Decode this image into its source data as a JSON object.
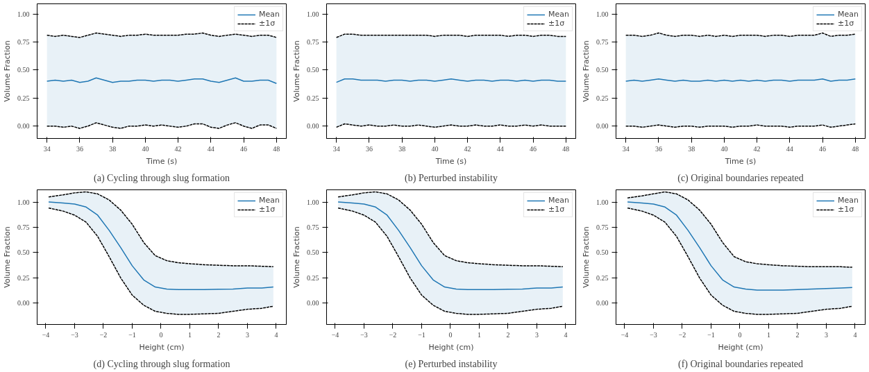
{
  "chart_data": [
    {
      "type": "line",
      "title": "(a) Cycling through slug formation",
      "xlabel": "Time (s)",
      "ylabel": "Volume Fraction",
      "xlim": [
        33.4,
        48.6
      ],
      "ylim": [
        -0.11,
        1.09
      ],
      "xticks": [
        34,
        36,
        38,
        40,
        42,
        44,
        46,
        48
      ],
      "yticks": [
        {
          "value": 0,
          "label": "0.00"
        },
        {
          "value": 0.25,
          "label": "0.25"
        },
        {
          "value": 0.5,
          "label": "0.50"
        },
        {
          "value": 0.75,
          "label": "0.75"
        },
        {
          "value": 1,
          "label": "1.00"
        }
      ],
      "legend": "top right",
      "grid": false,
      "x": [
        34,
        34.5,
        35,
        35.5,
        36,
        36.5,
        37,
        37.5,
        38,
        38.5,
        39,
        39.5,
        40,
        40.5,
        41,
        41.5,
        42,
        42.5,
        43,
        43.5,
        44,
        44.5,
        45,
        45.5,
        46,
        46.5,
        47,
        47.5,
        48
      ],
      "series": [
        {
          "name": "Mean",
          "color": "#1f77b4",
          "line_style": "solid",
          "values": [
            0.4,
            0.41,
            0.4,
            0.41,
            0.39,
            0.4,
            0.43,
            0.41,
            0.39,
            0.4,
            0.4,
            0.41,
            0.41,
            0.4,
            0.41,
            0.41,
            0.4,
            0.41,
            0.42,
            0.42,
            0.4,
            0.39,
            0.41,
            0.43,
            0.4,
            0.4,
            0.41,
            0.41,
            0.38
          ],
          "upper": [
            0.81,
            0.8,
            0.81,
            0.8,
            0.79,
            0.81,
            0.83,
            0.82,
            0.81,
            0.8,
            0.81,
            0.81,
            0.82,
            0.81,
            0.81,
            0.81,
            0.81,
            0.82,
            0.82,
            0.83,
            0.81,
            0.8,
            0.81,
            0.82,
            0.81,
            0.8,
            0.81,
            0.81,
            0.79
          ],
          "lower": [
            0.0,
            0.0,
            -0.01,
            0.0,
            -0.02,
            0.0,
            0.03,
            0.01,
            -0.01,
            -0.02,
            0.0,
            0.0,
            0.01,
            0.0,
            0.01,
            0.0,
            -0.01,
            0.0,
            0.02,
            0.02,
            -0.01,
            -0.02,
            0.01,
            0.03,
            0.0,
            -0.02,
            0.01,
            0.01,
            -0.02
          ]
        },
        {
          "name": "±1σ",
          "color": "#000000",
          "line_style": "dashed",
          "values": [
            0.81,
            0.8,
            0.81,
            0.8,
            0.79,
            0.81,
            0.83,
            0.82,
            0.81,
            0.8,
            0.81,
            0.81,
            0.82,
            0.81,
            0.81,
            0.81,
            0.81,
            0.82,
            0.82,
            0.83,
            0.81,
            0.8,
            0.81,
            0.82,
            0.81,
            0.8,
            0.81,
            0.81,
            0.79
          ]
        },
        {
          "color": "#000000",
          "line_style": "dashed",
          "values": [
            0.0,
            0.0,
            -0.01,
            0.0,
            -0.02,
            0.0,
            0.03,
            0.01,
            -0.01,
            -0.02,
            0.0,
            0.0,
            0.01,
            0.0,
            0.01,
            0.0,
            -0.01,
            0.0,
            0.02,
            0.02,
            -0.01,
            -0.02,
            0.01,
            0.03,
            0.0,
            -0.02,
            0.01,
            0.01,
            -0.02
          ]
        }
      ]
    },
    {
      "type": "line",
      "title": "(b) Perturbed instability",
      "xlabel": "Time (s)",
      "ylabel": "Volume Fraction",
      "xlim": [
        33.4,
        48.6
      ],
      "ylim": [
        -0.11,
        1.09
      ],
      "xticks": [
        34,
        36,
        38,
        40,
        42,
        44,
        46,
        48
      ],
      "yticks": [
        {
          "value": 0,
          "label": "0.00"
        },
        {
          "value": 0.25,
          "label": "0.25"
        },
        {
          "value": 0.5,
          "label": "0.50"
        },
        {
          "value": 0.75,
          "label": "0.75"
        },
        {
          "value": 1,
          "label": "1.00"
        }
      ],
      "legend": "top right",
      "grid": false,
      "x": [
        34,
        34.5,
        35,
        35.5,
        36,
        36.5,
        37,
        37.5,
        38,
        38.5,
        39,
        39.5,
        40,
        40.5,
        41,
        41.5,
        42,
        42.5,
        43,
        43.5,
        44,
        44.5,
        45,
        45.5,
        46,
        46.5,
        47,
        47.5,
        48
      ],
      "series": [
        {
          "name": "Mean",
          "color": "#1f77b4",
          "line_style": "solid",
          "values": [
            0.39,
            0.42,
            0.42,
            0.41,
            0.41,
            0.41,
            0.4,
            0.41,
            0.41,
            0.4,
            0.41,
            0.41,
            0.4,
            0.41,
            0.42,
            0.41,
            0.4,
            0.41,
            0.41,
            0.4,
            0.41,
            0.41,
            0.4,
            0.41,
            0.4,
            0.41,
            0.41,
            0.4,
            0.4
          ],
          "upper": [
            0.79,
            0.82,
            0.82,
            0.81,
            0.81,
            0.81,
            0.81,
            0.81,
            0.81,
            0.81,
            0.81,
            0.81,
            0.8,
            0.81,
            0.81,
            0.81,
            0.8,
            0.81,
            0.81,
            0.81,
            0.81,
            0.8,
            0.81,
            0.81,
            0.8,
            0.81,
            0.81,
            0.8,
            0.8
          ],
          "lower": [
            -0.01,
            0.02,
            0.01,
            0.0,
            0.01,
            0.0,
            0.0,
            0.01,
            0.0,
            0.0,
            0.01,
            0.0,
            -0.01,
            0.0,
            0.01,
            0.0,
            0.0,
            0.01,
            0.0,
            0.0,
            0.01,
            0.0,
            0.0,
            0.01,
            0.0,
            0.01,
            0.0,
            0.0,
            0.0
          ]
        },
        {
          "name": "±1σ",
          "color": "#000000",
          "line_style": "dashed",
          "values": [
            0.79,
            0.82,
            0.82,
            0.81,
            0.81,
            0.81,
            0.81,
            0.81,
            0.81,
            0.81,
            0.81,
            0.81,
            0.8,
            0.81,
            0.81,
            0.81,
            0.8,
            0.81,
            0.81,
            0.81,
            0.81,
            0.8,
            0.81,
            0.81,
            0.8,
            0.81,
            0.81,
            0.8,
            0.8
          ]
        },
        {
          "color": "#000000",
          "line_style": "dashed",
          "values": [
            -0.01,
            0.02,
            0.01,
            0.0,
            0.01,
            0.0,
            0.0,
            0.01,
            0.0,
            0.0,
            0.01,
            0.0,
            -0.01,
            0.0,
            0.01,
            0.0,
            0.0,
            0.01,
            0.0,
            0.0,
            0.01,
            0.0,
            0.0,
            0.01,
            0.0,
            0.01,
            0.0,
            0.0,
            0.0
          ]
        }
      ]
    },
    {
      "type": "line",
      "title": "(c) Original boundaries repeated",
      "xlabel": "Time (s)",
      "ylabel": "Volume Fraction",
      "xlim": [
        33.4,
        48.6
      ],
      "ylim": [
        -0.11,
        1.09
      ],
      "xticks": [
        34,
        36,
        38,
        40,
        42,
        44,
        46,
        48
      ],
      "yticks": [
        {
          "value": 0,
          "label": "0.00"
        },
        {
          "value": 0.25,
          "label": "0.25"
        },
        {
          "value": 0.5,
          "label": "0.50"
        },
        {
          "value": 0.75,
          "label": "0.75"
        },
        {
          "value": 1,
          "label": "1.00"
        }
      ],
      "legend": "top right",
      "grid": false,
      "x": [
        34,
        34.5,
        35,
        35.5,
        36,
        36.5,
        37,
        37.5,
        38,
        38.5,
        39,
        39.5,
        40,
        40.5,
        41,
        41.5,
        42,
        42.5,
        43,
        43.5,
        44,
        44.5,
        45,
        45.5,
        46,
        46.5,
        47,
        47.5,
        48
      ],
      "series": [
        {
          "name": "Mean",
          "color": "#1f77b4",
          "line_style": "solid",
          "values": [
            0.4,
            0.41,
            0.4,
            0.41,
            0.42,
            0.41,
            0.4,
            0.41,
            0.4,
            0.4,
            0.41,
            0.4,
            0.41,
            0.4,
            0.41,
            0.4,
            0.41,
            0.4,
            0.41,
            0.41,
            0.4,
            0.41,
            0.41,
            0.41,
            0.42,
            0.4,
            0.41,
            0.41,
            0.42
          ],
          "upper": [
            0.81,
            0.81,
            0.8,
            0.81,
            0.83,
            0.81,
            0.8,
            0.81,
            0.81,
            0.8,
            0.81,
            0.8,
            0.81,
            0.8,
            0.81,
            0.81,
            0.81,
            0.8,
            0.81,
            0.81,
            0.8,
            0.81,
            0.81,
            0.81,
            0.83,
            0.8,
            0.81,
            0.81,
            0.82
          ],
          "lower": [
            0.0,
            0.0,
            -0.01,
            0.0,
            0.01,
            0.0,
            -0.01,
            0.0,
            0.0,
            -0.01,
            0.0,
            0.0,
            0.0,
            -0.01,
            0.0,
            0.0,
            0.01,
            0.0,
            0.0,
            0.0,
            -0.01,
            0.0,
            0.0,
            0.0,
            0.01,
            -0.01,
            0.0,
            0.01,
            0.02
          ]
        },
        {
          "name": "±1σ",
          "color": "#000000",
          "line_style": "dashed",
          "values": [
            0.81,
            0.81,
            0.8,
            0.81,
            0.83,
            0.81,
            0.8,
            0.81,
            0.81,
            0.8,
            0.81,
            0.8,
            0.81,
            0.8,
            0.81,
            0.81,
            0.81,
            0.8,
            0.81,
            0.81,
            0.8,
            0.81,
            0.81,
            0.81,
            0.83,
            0.8,
            0.81,
            0.81,
            0.82
          ]
        },
        {
          "color": "#000000",
          "line_style": "dashed",
          "values": [
            0.0,
            0.0,
            -0.01,
            0.0,
            0.01,
            0.0,
            -0.01,
            0.0,
            0.0,
            -0.01,
            0.0,
            0.0,
            0.0,
            -0.01,
            0.0,
            0.0,
            0.01,
            0.0,
            0.0,
            0.0,
            -0.01,
            0.0,
            0.0,
            0.0,
            0.01,
            -0.01,
            0.0,
            0.01,
            0.02
          ]
        }
      ]
    },
    {
      "type": "line",
      "title": "(d) Cycling through slug formation",
      "xlabel": "Height (cm)",
      "ylabel": "Volume Fraction",
      "xlim": [
        -4.3,
        4.35
      ],
      "ylim": [
        -0.21,
        1.12
      ],
      "xticks": [
        {
          "value": -4,
          "label": "−4"
        },
        {
          "value": -3,
          "label": "−3"
        },
        {
          "value": -2,
          "label": "−2"
        },
        {
          "value": -1,
          "label": "−1"
        },
        0,
        1,
        2,
        3,
        4
      ],
      "yticks": [
        {
          "value": 0,
          "label": "0.00"
        },
        {
          "value": 0.25,
          "label": "0.25"
        },
        {
          "value": 0.5,
          "label": "0.50"
        },
        {
          "value": 0.75,
          "label": "0.75"
        },
        {
          "value": 1,
          "label": "1.00"
        }
      ],
      "legend": "top right",
      "grid": false,
      "x": [
        -3.9,
        -3.4,
        -3.0,
        -2.6,
        -2.2,
        -1.8,
        -1.4,
        -1.0,
        -0.6,
        -0.2,
        0.2,
        0.6,
        1.0,
        1.5,
        2.0,
        2.5,
        3.0,
        3.5,
        3.9
      ],
      "series": [
        {
          "name": "Mean",
          "color": "#1f77b4",
          "line_style": "solid",
          "values": [
            1.0,
            0.99,
            0.98,
            0.95,
            0.87,
            0.72,
            0.55,
            0.37,
            0.23,
            0.16,
            0.14,
            0.135,
            0.135,
            0.135,
            0.138,
            0.14,
            0.15,
            0.15,
            0.16
          ],
          "upper": [
            1.05,
            1.07,
            1.09,
            1.1,
            1.08,
            1.02,
            0.92,
            0.78,
            0.6,
            0.47,
            0.42,
            0.4,
            0.39,
            0.38,
            0.375,
            0.37,
            0.37,
            0.365,
            0.36
          ],
          "lower": [
            0.94,
            0.91,
            0.87,
            0.8,
            0.66,
            0.46,
            0.25,
            0.08,
            -0.02,
            -0.08,
            -0.1,
            -0.11,
            -0.11,
            -0.105,
            -0.1,
            -0.08,
            -0.06,
            -0.05,
            -0.03
          ]
        },
        {
          "name": "±1σ",
          "color": "#000000",
          "line_style": "dashed",
          "values": [
            1.05,
            1.07,
            1.09,
            1.1,
            1.08,
            1.02,
            0.92,
            0.78,
            0.6,
            0.47,
            0.42,
            0.4,
            0.39,
            0.38,
            0.375,
            0.37,
            0.37,
            0.365,
            0.36
          ]
        },
        {
          "color": "#000000",
          "line_style": "dashed",
          "values": [
            0.94,
            0.91,
            0.87,
            0.8,
            0.66,
            0.46,
            0.25,
            0.08,
            -0.02,
            -0.08,
            -0.1,
            -0.11,
            -0.11,
            -0.105,
            -0.1,
            -0.08,
            -0.06,
            -0.05,
            -0.03
          ]
        }
      ]
    },
    {
      "type": "line",
      "title": "(e) Perturbed instability",
      "xlabel": "Height (cm)",
      "ylabel": "Volume Fraction",
      "xlim": [
        -4.3,
        4.35
      ],
      "ylim": [
        -0.21,
        1.12
      ],
      "xticks": [
        {
          "value": -4,
          "label": "−4"
        },
        {
          "value": -3,
          "label": "−3"
        },
        {
          "value": -2,
          "label": "−2"
        },
        {
          "value": -1,
          "label": "−1"
        },
        0,
        1,
        2,
        3,
        4
      ],
      "yticks": [
        {
          "value": 0,
          "label": "0.00"
        },
        {
          "value": 0.25,
          "label": "0.25"
        },
        {
          "value": 0.5,
          "label": "0.50"
        },
        {
          "value": 0.75,
          "label": "0.75"
        },
        {
          "value": 1,
          "label": "1.00"
        }
      ],
      "legend": "top right",
      "grid": false,
      "x": [
        -3.9,
        -3.4,
        -3.0,
        -2.6,
        -2.2,
        -1.8,
        -1.4,
        -1.0,
        -0.6,
        -0.2,
        0.2,
        0.6,
        1.0,
        1.5,
        2.0,
        2.5,
        3.0,
        3.5,
        3.9
      ],
      "series": [
        {
          "name": "Mean",
          "color": "#1f77b4",
          "line_style": "solid",
          "values": [
            1.0,
            0.99,
            0.98,
            0.95,
            0.87,
            0.72,
            0.55,
            0.37,
            0.23,
            0.16,
            0.14,
            0.135,
            0.135,
            0.135,
            0.138,
            0.14,
            0.15,
            0.15,
            0.16
          ],
          "upper": [
            1.05,
            1.07,
            1.09,
            1.1,
            1.08,
            1.02,
            0.92,
            0.78,
            0.6,
            0.47,
            0.42,
            0.4,
            0.39,
            0.38,
            0.375,
            0.37,
            0.37,
            0.365,
            0.36
          ],
          "lower": [
            0.94,
            0.91,
            0.87,
            0.8,
            0.66,
            0.46,
            0.25,
            0.08,
            -0.02,
            -0.08,
            -0.1,
            -0.11,
            -0.11,
            -0.105,
            -0.1,
            -0.08,
            -0.06,
            -0.05,
            -0.03
          ]
        },
        {
          "name": "±1σ",
          "color": "#000000",
          "line_style": "dashed",
          "values": [
            1.05,
            1.07,
            1.09,
            1.1,
            1.08,
            1.02,
            0.92,
            0.78,
            0.6,
            0.47,
            0.42,
            0.4,
            0.39,
            0.38,
            0.375,
            0.37,
            0.37,
            0.365,
            0.36
          ]
        },
        {
          "color": "#000000",
          "line_style": "dashed",
          "values": [
            0.94,
            0.91,
            0.87,
            0.8,
            0.66,
            0.46,
            0.25,
            0.08,
            -0.02,
            -0.08,
            -0.1,
            -0.11,
            -0.11,
            -0.105,
            -0.1,
            -0.08,
            -0.06,
            -0.05,
            -0.03
          ]
        }
      ]
    },
    {
      "type": "line",
      "title": "(f) Original boundaries repeated",
      "xlabel": "Height (cm)",
      "ylabel": "Volume Fraction",
      "xlim": [
        -4.3,
        4.35
      ],
      "ylim": [
        -0.21,
        1.12
      ],
      "xticks": [
        {
          "value": -4,
          "label": "−4"
        },
        {
          "value": -3,
          "label": "−3"
        },
        {
          "value": -2,
          "label": "−2"
        },
        {
          "value": -1,
          "label": "−1"
        },
        0,
        1,
        2,
        3,
        4
      ],
      "yticks": [
        {
          "value": 0,
          "label": "0.00"
        },
        {
          "value": 0.25,
          "label": "0.25"
        },
        {
          "value": 0.5,
          "label": "0.50"
        },
        {
          "value": 0.75,
          "label": "0.75"
        },
        {
          "value": 1,
          "label": "1.00"
        }
      ],
      "legend": "top right",
      "grid": false,
      "x": [
        -3.9,
        -3.4,
        -3.0,
        -2.6,
        -2.2,
        -1.8,
        -1.4,
        -1.0,
        -0.6,
        -0.2,
        0.2,
        0.6,
        1.0,
        1.5,
        2.0,
        2.5,
        3.0,
        3.5,
        3.9
      ],
      "series": [
        {
          "name": "Mean",
          "color": "#1f77b4",
          "line_style": "solid",
          "values": [
            1.0,
            0.99,
            0.98,
            0.95,
            0.87,
            0.72,
            0.55,
            0.37,
            0.23,
            0.16,
            0.14,
            0.13,
            0.13,
            0.13,
            0.135,
            0.14,
            0.145,
            0.15,
            0.155
          ],
          "upper": [
            1.04,
            1.06,
            1.08,
            1.1,
            1.08,
            1.02,
            0.92,
            0.78,
            0.6,
            0.46,
            0.41,
            0.39,
            0.38,
            0.37,
            0.365,
            0.36,
            0.36,
            0.36,
            0.355
          ],
          "lower": [
            0.94,
            0.91,
            0.87,
            0.8,
            0.66,
            0.46,
            0.25,
            0.08,
            -0.02,
            -0.08,
            -0.1,
            -0.11,
            -0.11,
            -0.105,
            -0.1,
            -0.08,
            -0.06,
            -0.05,
            -0.03
          ]
        },
        {
          "name": "±1σ",
          "color": "#000000",
          "line_style": "dashed",
          "values": [
            1.04,
            1.06,
            1.08,
            1.1,
            1.08,
            1.02,
            0.92,
            0.78,
            0.6,
            0.46,
            0.41,
            0.39,
            0.38,
            0.37,
            0.365,
            0.36,
            0.36,
            0.36,
            0.355
          ]
        },
        {
          "color": "#000000",
          "line_style": "dashed",
          "values": [
            0.94,
            0.91,
            0.87,
            0.8,
            0.66,
            0.46,
            0.25,
            0.08,
            -0.02,
            -0.08,
            -0.1,
            -0.11,
            -0.11,
            -0.105,
            -0.1,
            -0.08,
            -0.06,
            -0.05,
            -0.03
          ]
        }
      ]
    }
  ]
}
